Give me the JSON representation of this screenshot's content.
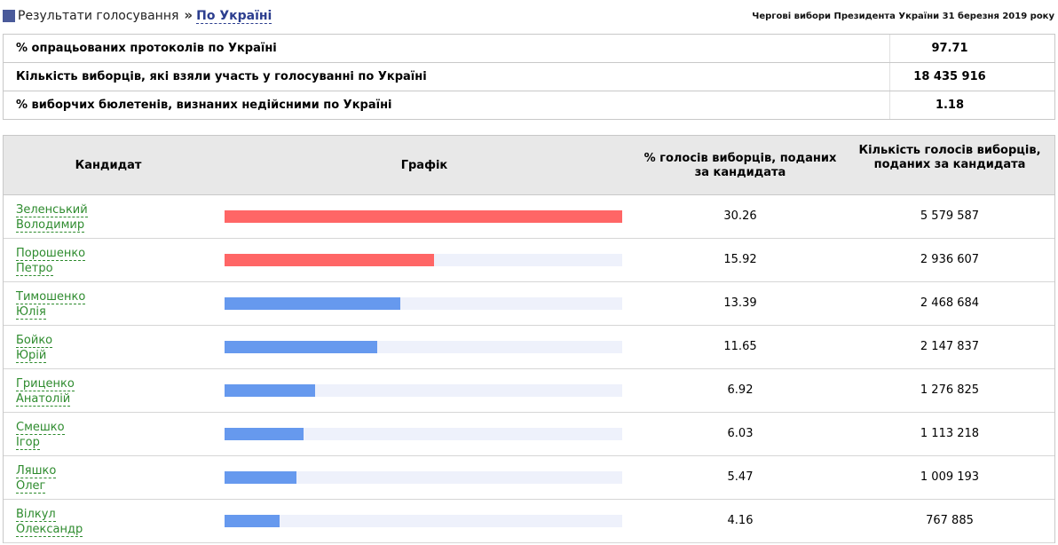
{
  "header": {
    "breadcrumb_root": "Результати голосування",
    "breadcrumb_sep": "»",
    "breadcrumb_current": "По Україні",
    "election_title": "Чергові вибори Президента України 31 березня 2019 року"
  },
  "summary": [
    {
      "label": "% опрацьованих протоколів по Україні",
      "value": "97.71"
    },
    {
      "label": "Кількість виборців, які взяли участь у голосуванні по Україні",
      "value": "18 435 916"
    },
    {
      "label": "% виборчих бюлетенів, визнаних недійсними по Україні",
      "value": "1.18"
    }
  ],
  "results": {
    "headers": {
      "candidate": "Кандидат",
      "graph": "Графік",
      "percent": "% голосів виборців, поданих за кандидата",
      "count": "Кількість голосів виборців, поданих за кандидата"
    },
    "colors": {
      "leader": "#ff6666",
      "other": "#6699ee",
      "track": "#eef1fb"
    },
    "rows": [
      {
        "surname": "Зеленський",
        "name": "Володимир",
        "percent": "30.26",
        "count": "5 579 587",
        "bar_fraction": 1.0,
        "color": "#ff6666"
      },
      {
        "surname": "Порошенко",
        "name": "Петро",
        "percent": "15.92",
        "count": "2 936 607",
        "bar_fraction": 0.526,
        "color": "#ff6666"
      },
      {
        "surname": "Тимошенко",
        "name": "Юлія",
        "percent": "13.39",
        "count": "2 468 684",
        "bar_fraction": 0.4425,
        "color": "#6699ee"
      },
      {
        "surname": "Бойко",
        "name": "Юрій",
        "percent": "11.65",
        "count": "2 147 837",
        "bar_fraction": 0.385,
        "color": "#6699ee"
      },
      {
        "surname": "Гриценко",
        "name": "Анатолій",
        "percent": "6.92",
        "count": "1 276 825",
        "bar_fraction": 0.2287,
        "color": "#6699ee"
      },
      {
        "surname": "Смешко",
        "name": "Ігор",
        "percent": "6.03",
        "count": "1 113 218",
        "bar_fraction": 0.1993,
        "color": "#6699ee"
      },
      {
        "surname": "Ляшко",
        "name": "Олег",
        "percent": "5.47",
        "count": "1 009 193",
        "bar_fraction": 0.1808,
        "color": "#6699ee"
      },
      {
        "surname": "Вілкул",
        "name": "Олександр",
        "percent": "4.16",
        "count": "767 885",
        "bar_fraction": 0.1375,
        "color": "#6699ee"
      }
    ]
  }
}
